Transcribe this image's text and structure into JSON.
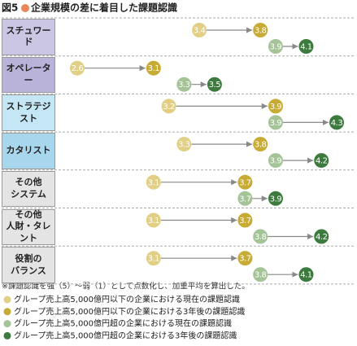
{
  "figure_label": "図5",
  "chart_data": {
    "type": "arrow-dot",
    "title": "企業規模の差に着目した課題認識",
    "categories": [
      "スチュワード",
      "オペレーター",
      "ストラテジスト",
      "カタリスト",
      "その他\nシステム",
      "その他\n人財・タレント",
      "役割の\nバランス"
    ],
    "category_colors": [
      "#cbc6e4",
      "#b9b3da",
      "#c4e6f5",
      "#a8d6ec",
      "#e4e4e4",
      "#e4e4e4",
      "#e4e4e4"
    ],
    "series": [
      {
        "name": "グループ売上高5,000億円以下の企業における現在の課題認識",
        "color": "#e2cf86",
        "values": [
          3.4,
          2.6,
          3.2,
          3.3,
          3.1,
          3.1,
          3.1
        ]
      },
      {
        "name": "グループ売上高5,000億円以下の企業における3年後の課題認識",
        "color": "#c8ab35",
        "values": [
          3.8,
          3.1,
          3.9,
          3.8,
          3.7,
          3.7,
          3.7
        ]
      },
      {
        "name": "グループ売上高5,000億円超の企業における現在の課題認識",
        "color": "#a4c497",
        "values": [
          3.9,
          3.3,
          3.9,
          3.9,
          3.7,
          3.8,
          3.8
        ]
      },
      {
        "name": "グループ売上高5,000億円超の企業における3年後の課題認識",
        "color": "#3c7a3e",
        "values": [
          4.1,
          3.5,
          4.3,
          4.2,
          3.9,
          4.2,
          4.1
        ]
      }
    ],
    "note": "※課題認識を強（5）～弱（1）として点数化し、加重平均を算出した。"
  }
}
